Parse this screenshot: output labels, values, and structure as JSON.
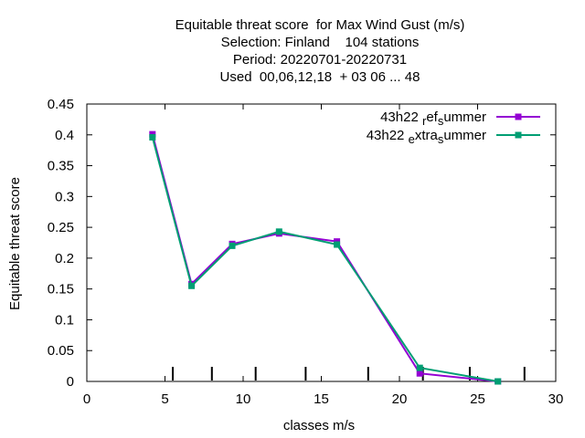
{
  "chart_data": {
    "type": "line",
    "title_lines": [
      "Equitable threat score  for Max Wind Gust (m/s)",
      "Selection: Finland    104 stations",
      "Period: 20220701-20220731",
      "Used  00,06,12,18  + 03 06 ... 48"
    ],
    "xlabel": "classes m/s",
    "ylabel": "Equitable threat score",
    "xlim": [
      0,
      30
    ],
    "ylim": [
      0,
      0.45
    ],
    "x_ticks": [
      "0",
      "5",
      "10",
      "15",
      "20",
      "25",
      "30"
    ],
    "y_ticks": [
      "0",
      "0.05",
      "0.1",
      "0.15",
      "0.2",
      "0.25",
      "0.3",
      "0.35",
      "0.4",
      "0.45"
    ],
    "class_markers": [
      5.5,
      8,
      10.8,
      14,
      18,
      21.5,
      24.5,
      28
    ],
    "legend_position": "top-right",
    "grid": false,
    "series": [
      {
        "name_main": "43h22",
        "name_parts": [
          [
            "r",
            "ef"
          ],
          [
            "s",
            "ummer"
          ]
        ],
        "color": "#9400d3",
        "x": [
          4.2,
          6.7,
          9.3,
          12.3,
          16.0,
          21.3,
          26.3
        ],
        "values": [
          0.401,
          0.158,
          0.223,
          0.24,
          0.227,
          0.013,
          0.0
        ]
      },
      {
        "name_main": "43h22",
        "name_parts": [
          [
            "e",
            "xtra"
          ],
          [
            "s",
            "ummer"
          ]
        ],
        "color": "#009e73",
        "x": [
          4.2,
          6.7,
          9.3,
          12.3,
          16.0,
          21.3,
          26.3
        ],
        "values": [
          0.396,
          0.155,
          0.22,
          0.243,
          0.222,
          0.022,
          0.0
        ]
      }
    ]
  }
}
